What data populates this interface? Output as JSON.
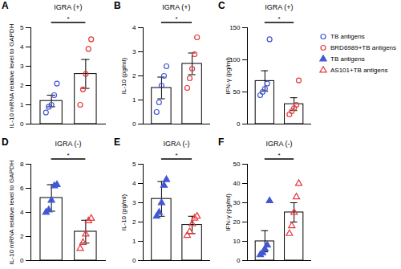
{
  "chart_data": [
    {
      "type": "bar",
      "panel": "A",
      "title": "IGRA (+)",
      "y_label": "IL-10 mRNA relative level to GAPDH",
      "annotation": "*",
      "categories": [
        null
      ],
      "ylim": [
        0,
        5
      ],
      "yticks": [
        0,
        1,
        2,
        3,
        4,
        5
      ],
      "tick_labels": "y",
      "series": [
        {
          "name": "TB antigens",
          "color": "#4257d4",
          "marker": "circle",
          "values": [
            1.2
          ],
          "errors": [
            0.3
          ],
          "points": [
            [
              0.6,
              0.9,
              1.0,
              1.5,
              2.1
            ]
          ]
        },
        {
          "name": "BRD6989+TB antigens",
          "color": "#e8383d",
          "marker": "circle",
          "values": [
            2.6
          ],
          "errors": [
            0.75
          ],
          "points": [
            [
              1.0,
              1.8,
              2.6,
              3.9,
              4.4
            ]
          ]
        }
      ]
    },
    {
      "type": "bar",
      "panel": "B",
      "title": "IGRA (+)",
      "y_label": "IL-10 (pg/ml)",
      "annotation": "*",
      "categories": [
        null
      ],
      "ylim": [
        0,
        4
      ],
      "yticks": [
        0,
        1,
        2,
        3,
        4
      ],
      "tick_labels": "y",
      "series": [
        {
          "name": "TB antigens",
          "color": "#4257d4",
          "marker": "circle",
          "values": [
            1.5
          ],
          "errors": [
            0.45
          ],
          "points": [
            [
              0.5,
              0.9,
              1.6,
              2.0,
              2.4
            ]
          ]
        },
        {
          "name": "BRD6989+TB antigens",
          "color": "#e8383d",
          "marker": "circle",
          "values": [
            2.5
          ],
          "errors": [
            0.45
          ],
          "points": [
            [
              1.5,
              1.9,
              2.3,
              2.9,
              3.6
            ]
          ]
        }
      ]
    },
    {
      "type": "bar",
      "panel": "C",
      "title": "IGRA (+)",
      "y_label": "IFN-γ (pg/ml)",
      "annotation": "*",
      "categories": [
        null
      ],
      "ylim": [
        0,
        150
      ],
      "yticks": [
        0,
        50,
        100,
        150
      ],
      "tick_labels": "y",
      "legend": "right",
      "series": [
        {
          "name": "TB antigens",
          "color": "#4257d4",
          "marker": "circle",
          "values": [
            67
          ],
          "errors": [
            16
          ],
          "points": [
            [
              45,
              50,
              55,
              63,
              132
            ]
          ]
        },
        {
          "name": "BRD6989+TB antigens",
          "color": "#e8383d",
          "marker": "circle",
          "values": [
            31
          ],
          "errors": [
            10
          ],
          "points": [
            [
              15,
              20,
              25,
              30,
              68
            ]
          ]
        }
      ]
    },
    {
      "type": "bar",
      "panel": "D",
      "title": "IGRA (-)",
      "y_label": "IL-10 mRNA relative level to GAPDH",
      "annotation": "*",
      "categories": [
        null
      ],
      "ylim": [
        0,
        8
      ],
      "yticks": [
        0,
        2,
        4,
        6,
        8
      ],
      "tick_labels": "y",
      "series": [
        {
          "name": "TB antigens",
          "color": "#4257d4",
          "marker": "filled-triangle",
          "values": [
            5.2
          ],
          "errors": [
            1.1
          ],
          "points": [
            [
              4.0,
              4.2,
              5.0,
              6.2,
              6.3
            ]
          ]
        },
        {
          "name": "AS101+TB antigens",
          "color": "#e8383d",
          "marker": "triangle",
          "values": [
            2.4
          ],
          "errors": [
            0.95
          ],
          "points": [
            [
              1.0,
              1.5,
              2.2,
              3.3,
              3.5
            ]
          ]
        }
      ]
    },
    {
      "type": "bar",
      "panel": "E",
      "title": "IGRA (-)",
      "y_label": "IL-10 (pg/ml)",
      "annotation": "*",
      "categories": [
        null
      ],
      "ylim": [
        0,
        5
      ],
      "yticks": [
        0,
        1,
        2,
        3,
        4,
        5
      ],
      "tick_labels": "y",
      "series": [
        {
          "name": "TB antigens",
          "color": "#4257d4",
          "marker": "filled-triangle",
          "values": [
            3.2
          ],
          "errors": [
            0.9
          ],
          "points": [
            [
              2.3,
              2.5,
              3.0,
              3.9,
              4.2
            ]
          ]
        },
        {
          "name": "AS101+TB antigens",
          "color": "#e8383d",
          "marker": "triangle",
          "values": [
            1.85
          ],
          "errors": [
            0.45
          ],
          "points": [
            [
              1.3,
              1.5,
              1.9,
              2.2,
              2.3
            ]
          ]
        }
      ]
    },
    {
      "type": "bar",
      "panel": "F",
      "title": "IGRA (-)",
      "y_label": "IFN-γ (pg/ml)",
      "annotation": "*",
      "categories": [
        null
      ],
      "ylim": [
        0,
        50
      ],
      "yticks": [
        0,
        10,
        20,
        30,
        40,
        50
      ],
      "tick_labels": "y",
      "series": [
        {
          "name": "TB antigens",
          "color": "#4257d4",
          "marker": "filled-triangle",
          "values": [
            10
          ],
          "errors": [
            5.5
          ],
          "points": [
            [
              3,
              4,
              6,
              8,
              31
            ]
          ]
        },
        {
          "name": "AS101+TB antigens",
          "color": "#e8383d",
          "marker": "triangle",
          "values": [
            25
          ],
          "errors": [
            5
          ],
          "points": [
            [
              14,
              18,
              25,
              33,
              40
            ]
          ]
        }
      ]
    }
  ]
}
